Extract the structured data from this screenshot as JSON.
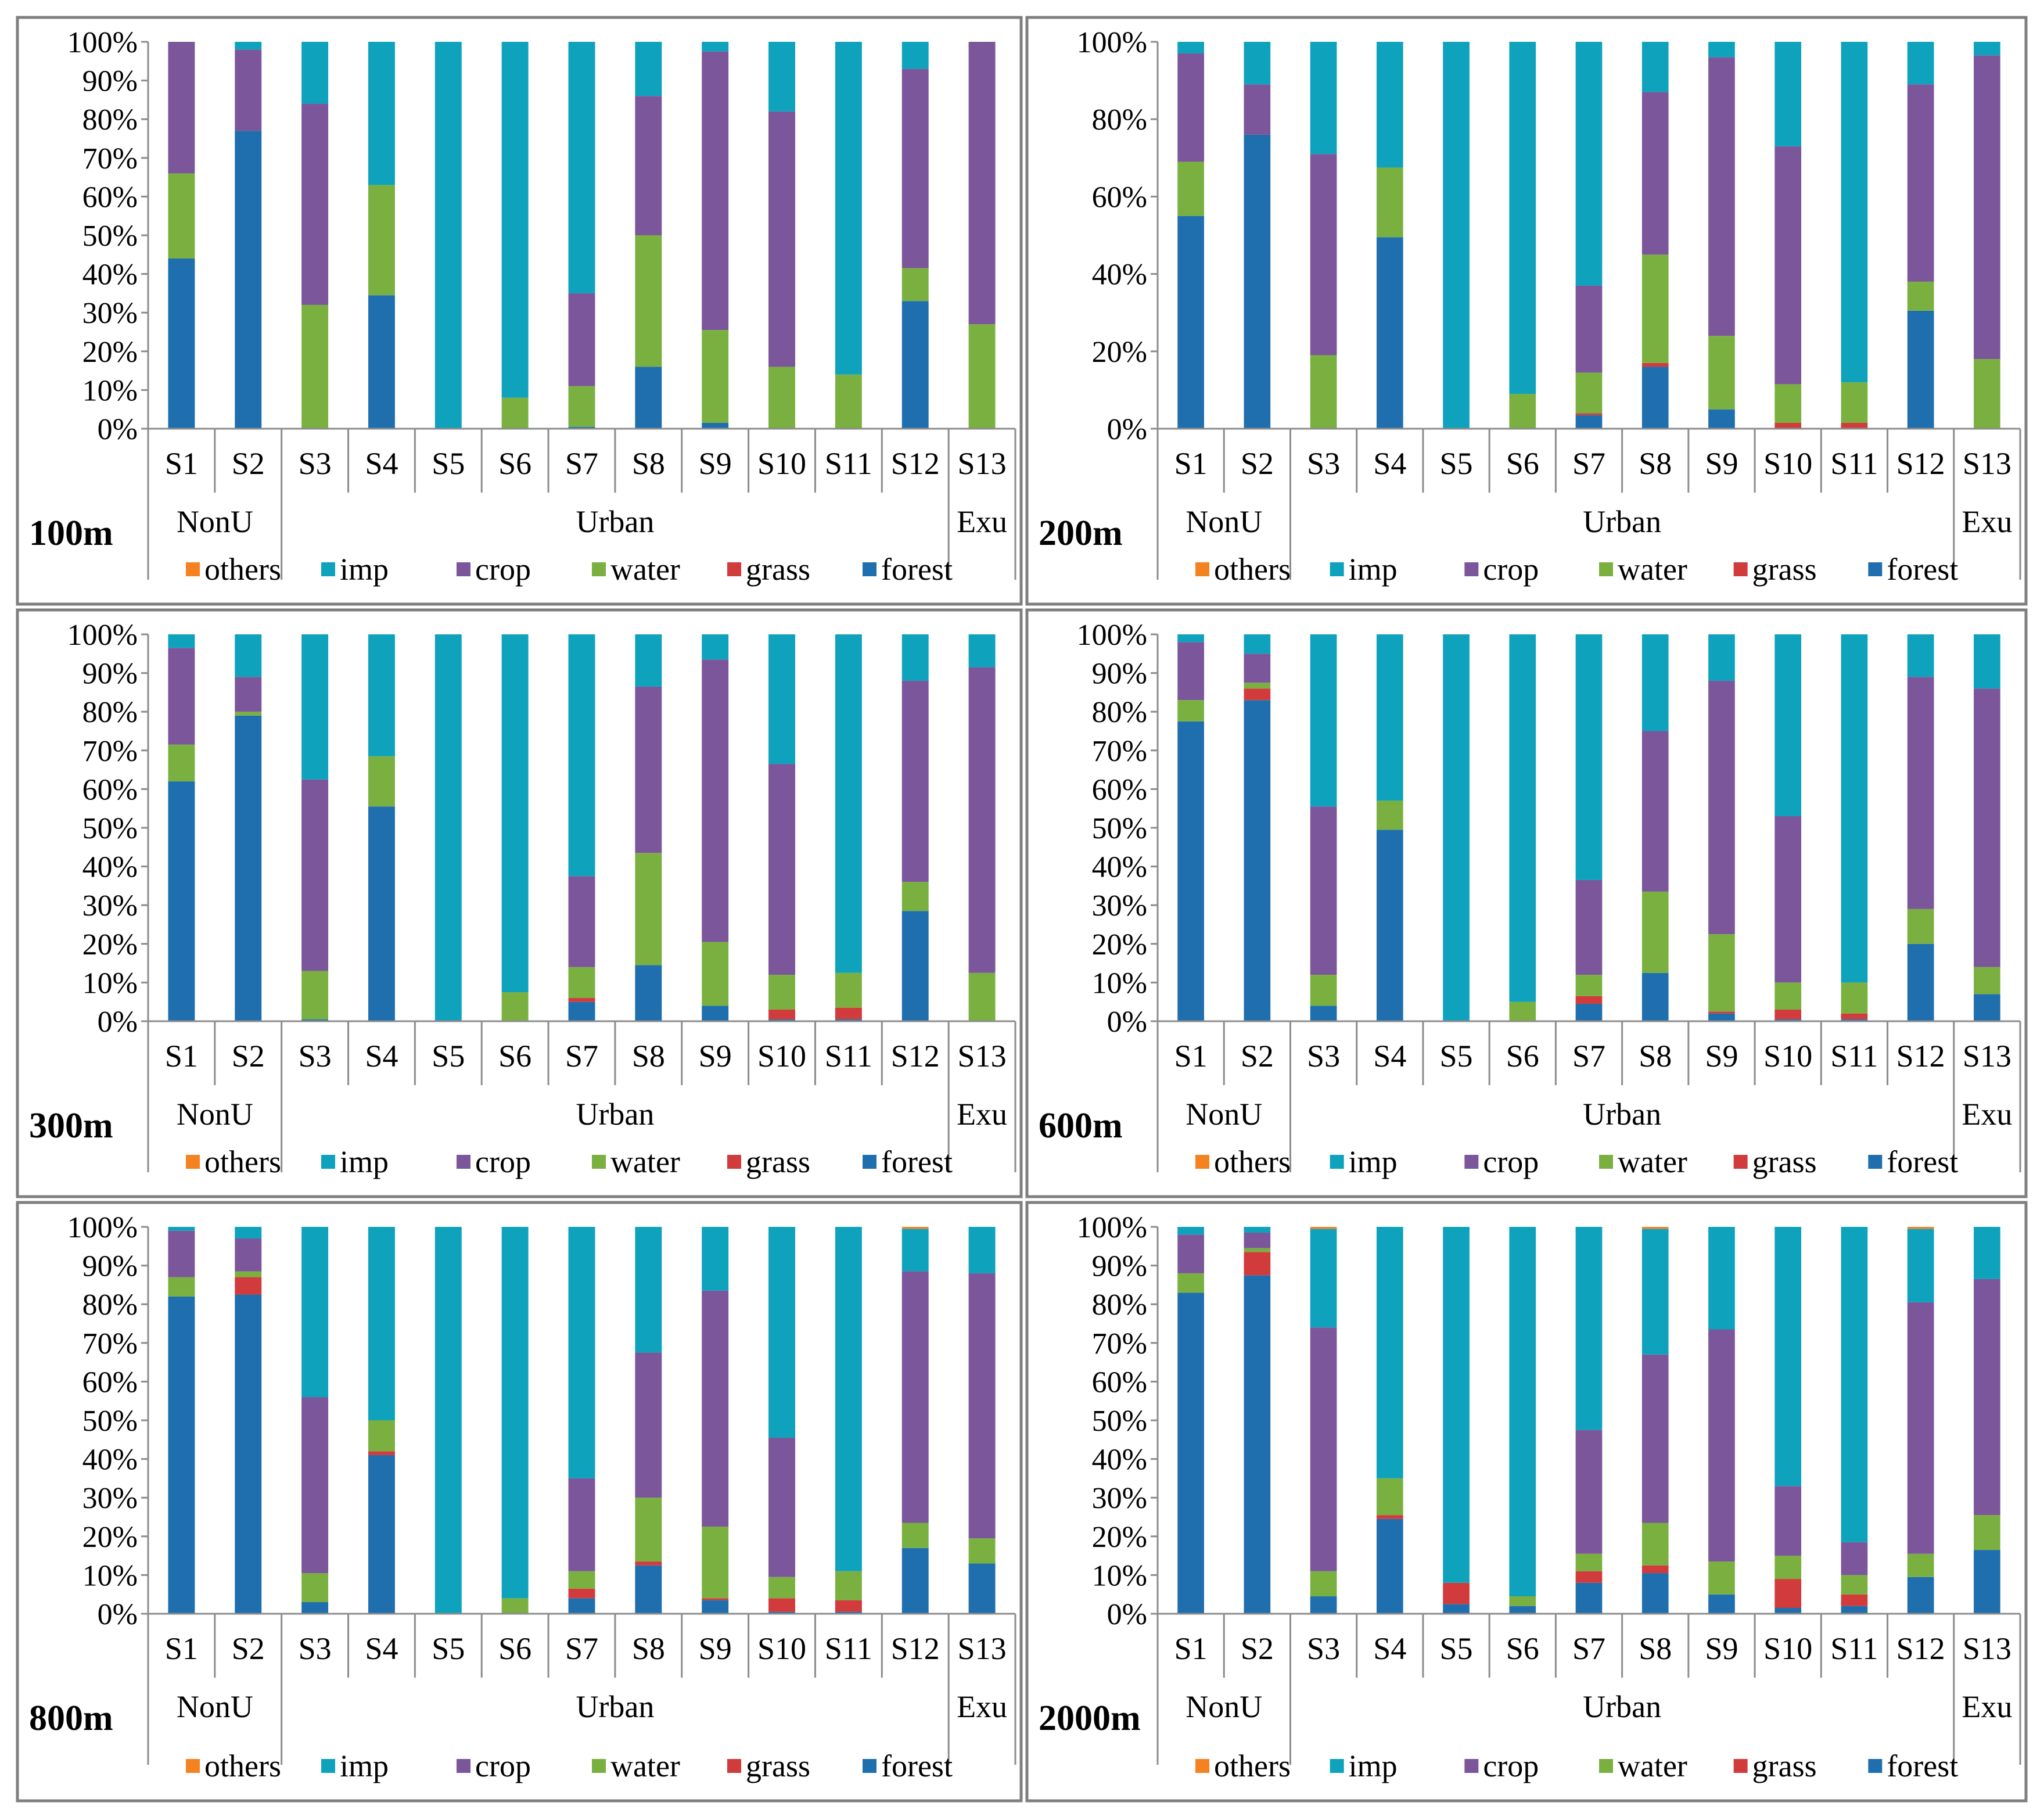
{
  "palette": {
    "others": "#f58220",
    "imp": "#0ea2bd",
    "crop": "#7b569a",
    "water": "#7ab040",
    "grass": "#d13b3b",
    "forest": "#1f6fae"
  },
  "chart_data": [
    {
      "type": "bar",
      "stacked": true,
      "panel_label": "100m",
      "categories": [
        "S1",
        "S2",
        "S3",
        "S4",
        "S5",
        "S6",
        "S7",
        "S8",
        "S9",
        "S10",
        "S11",
        "S12",
        "S13"
      ],
      "groups": [
        {
          "label": "NonU",
          "span": [
            0,
            1
          ]
        },
        {
          "label": "Urban",
          "span": [
            2,
            11
          ]
        },
        {
          "label": "Exu",
          "span": [
            12,
            12
          ]
        }
      ],
      "yticks": [
        "0%",
        "10%",
        "20%",
        "30%",
        "40%",
        "50%",
        "60%",
        "70%",
        "80%",
        "90%",
        "100%"
      ],
      "ylim": [
        0,
        100
      ],
      "legend": [
        "others",
        "imp",
        "crop",
        "water",
        "grass",
        "forest"
      ],
      "series": [
        {
          "name": "forest",
          "values": [
            44,
            77,
            0,
            34.5,
            0,
            0,
            0.5,
            16,
            1.5,
            0,
            0,
            33,
            0
          ]
        },
        {
          "name": "grass",
          "values": [
            0,
            0,
            0,
            0,
            0,
            0,
            0,
            0,
            0,
            0,
            0,
            0,
            0
          ]
        },
        {
          "name": "water",
          "values": [
            22,
            0,
            32,
            28.5,
            0,
            8,
            10.5,
            34,
            24,
            16,
            14,
            8.5,
            27
          ]
        },
        {
          "name": "crop",
          "values": [
            34,
            21,
            52,
            0,
            0,
            0,
            24,
            36,
            72,
            66,
            0,
            51.5,
            73
          ]
        },
        {
          "name": "imp",
          "values": [
            0,
            2,
            16,
            37,
            100,
            92,
            65,
            14,
            2.5,
            18,
            86,
            7,
            0
          ]
        },
        {
          "name": "others",
          "values": [
            0,
            0,
            0,
            0,
            0,
            0,
            0,
            0,
            0,
            0,
            0,
            0,
            0
          ]
        }
      ]
    },
    {
      "type": "bar",
      "stacked": true,
      "panel_label": "200m",
      "categories": [
        "S1",
        "S2",
        "S3",
        "S4",
        "S5",
        "S6",
        "S7",
        "S8",
        "S9",
        "S10",
        "S11",
        "S12",
        "S13"
      ],
      "groups": [
        {
          "label": "NonU",
          "span": [
            0,
            1
          ]
        },
        {
          "label": "Urban",
          "span": [
            2,
            11
          ]
        },
        {
          "label": "Exu",
          "span": [
            12,
            12
          ]
        }
      ],
      "yticks": [
        "0%",
        "20%",
        "40%",
        "60%",
        "80%",
        "100%"
      ],
      "ylim": [
        0,
        100
      ],
      "legend": [
        "others",
        "imp",
        "crop",
        "water",
        "grass",
        "forest"
      ],
      "series": [
        {
          "name": "forest",
          "values": [
            55,
            76,
            0,
            49.5,
            0,
            0,
            3.5,
            16,
            5,
            0,
            0,
            30.5,
            0
          ]
        },
        {
          "name": "grass",
          "values": [
            0,
            0,
            0,
            0,
            0,
            0,
            0.5,
            1,
            0,
            1.5,
            1.5,
            0,
            0
          ]
        },
        {
          "name": "water",
          "values": [
            14,
            0,
            19,
            18,
            0,
            9,
            10.5,
            28,
            19,
            10,
            10.5,
            7.5,
            18
          ]
        },
        {
          "name": "crop",
          "values": [
            28,
            13,
            52,
            0,
            0,
            0,
            22.5,
            42,
            72,
            61.5,
            0,
            51,
            78.5
          ]
        },
        {
          "name": "imp",
          "values": [
            3,
            11,
            29,
            32.5,
            100,
            91,
            63,
            13,
            4,
            27,
            88,
            11,
            3.5
          ]
        },
        {
          "name": "others",
          "values": [
            0,
            0,
            0,
            0,
            0,
            0,
            0,
            0,
            0,
            0,
            0,
            0,
            0
          ]
        }
      ]
    },
    {
      "type": "bar",
      "stacked": true,
      "panel_label": "300m",
      "categories": [
        "S1",
        "S2",
        "S3",
        "S4",
        "S5",
        "S6",
        "S7",
        "S8",
        "S9",
        "S10",
        "S11",
        "S12",
        "S13"
      ],
      "groups": [
        {
          "label": "NonU",
          "span": [
            0,
            1
          ]
        },
        {
          "label": "Urban",
          "span": [
            2,
            11
          ]
        },
        {
          "label": "Exu",
          "span": [
            12,
            12
          ]
        }
      ],
      "yticks": [
        "0%",
        "10%",
        "20%",
        "30%",
        "40%",
        "50%",
        "60%",
        "70%",
        "80%",
        "90%",
        "100%"
      ],
      "ylim": [
        0,
        100
      ],
      "legend": [
        "others",
        "imp",
        "crop",
        "water",
        "grass",
        "forest"
      ],
      "series": [
        {
          "name": "forest",
          "values": [
            62,
            79,
            0.5,
            55.5,
            0,
            0,
            5,
            14.5,
            4,
            0.5,
            0.5,
            28.5,
            0
          ]
        },
        {
          "name": "grass",
          "values": [
            0,
            0,
            0,
            0,
            0,
            0,
            1,
            0,
            0,
            2.5,
            3,
            0,
            0
          ]
        },
        {
          "name": "water",
          "values": [
            9.5,
            1,
            12.5,
            13,
            0,
            7.5,
            8,
            29,
            16.5,
            9,
            9,
            7.5,
            12.5
          ]
        },
        {
          "name": "crop",
          "values": [
            25,
            9,
            49.5,
            0,
            0,
            0,
            23.5,
            43,
            73,
            54.5,
            0,
            52,
            79
          ]
        },
        {
          "name": "imp",
          "values": [
            3.5,
            11,
            37.5,
            31.5,
            100,
            92.5,
            62.5,
            13.5,
            6.5,
            33.5,
            87.5,
            12,
            8.5
          ]
        },
        {
          "name": "others",
          "values": [
            0,
            0,
            0,
            0,
            0,
            0,
            0,
            0,
            0,
            0,
            0,
            0,
            0
          ]
        }
      ]
    },
    {
      "type": "bar",
      "stacked": true,
      "panel_label": "600m",
      "categories": [
        "S1",
        "S2",
        "S3",
        "S4",
        "S5",
        "S6",
        "S7",
        "S8",
        "S9",
        "S10",
        "S11",
        "S12",
        "S13"
      ],
      "groups": [
        {
          "label": "NonU",
          "span": [
            0,
            1
          ]
        },
        {
          "label": "Urban",
          "span": [
            2,
            11
          ]
        },
        {
          "label": "Exu",
          "span": [
            12,
            12
          ]
        }
      ],
      "yticks": [
        "0%",
        "10%",
        "20%",
        "30%",
        "40%",
        "50%",
        "60%",
        "70%",
        "80%",
        "90%",
        "100%"
      ],
      "ylim": [
        0,
        100
      ],
      "legend": [
        "others",
        "imp",
        "crop",
        "water",
        "grass",
        "forest"
      ],
      "series": [
        {
          "name": "forest",
          "values": [
            77.5,
            83,
            4,
            49.5,
            0,
            0,
            4.5,
            12.5,
            2,
            0.5,
            0.5,
            20,
            7
          ]
        },
        {
          "name": "grass",
          "values": [
            0,
            3,
            0,
            0,
            0,
            0,
            2,
            0,
            0.5,
            2.5,
            1.5,
            0,
            0
          ]
        },
        {
          "name": "water",
          "values": [
            5.5,
            1.5,
            8,
            7.5,
            0,
            5,
            5.5,
            21,
            20,
            7,
            8,
            9,
            7
          ]
        },
        {
          "name": "crop",
          "values": [
            15,
            7.5,
            43.5,
            0,
            0,
            0,
            24.5,
            41.5,
            65.5,
            43,
            0,
            60,
            72
          ]
        },
        {
          "name": "imp",
          "values": [
            2,
            5,
            44.5,
            43,
            100,
            95,
            63.5,
            25,
            12,
            47,
            90,
            11,
            14
          ]
        },
        {
          "name": "others",
          "values": [
            0,
            0,
            0,
            0,
            0,
            0,
            0,
            0,
            0,
            0,
            0,
            0,
            0
          ]
        }
      ]
    },
    {
      "type": "bar",
      "stacked": true,
      "panel_label": "800m",
      "categories": [
        "S1",
        "S2",
        "S3",
        "S4",
        "S5",
        "S6",
        "S7",
        "S8",
        "S9",
        "S10",
        "S11",
        "S12",
        "S13"
      ],
      "groups": [
        {
          "label": "NonU",
          "span": [
            0,
            1
          ]
        },
        {
          "label": "Urban",
          "span": [
            2,
            11
          ]
        },
        {
          "label": "Exu",
          "span": [
            12,
            12
          ]
        }
      ],
      "yticks": [
        "0%",
        "10%",
        "20%",
        "30%",
        "40%",
        "50%",
        "60%",
        "70%",
        "80%",
        "90%",
        "100%"
      ],
      "ylim": [
        0,
        100
      ],
      "legend": [
        "others",
        "imp",
        "crop",
        "water",
        "grass",
        "forest"
      ],
      "series": [
        {
          "name": "forest",
          "values": [
            82,
            82.5,
            3,
            41,
            0,
            0,
            4,
            12.5,
            3.5,
            0.5,
            0.5,
            17,
            13
          ]
        },
        {
          "name": "grass",
          "values": [
            0,
            4.5,
            0,
            1,
            0,
            0,
            2.5,
            1,
            0.5,
            3.5,
            3,
            0,
            0
          ]
        },
        {
          "name": "water",
          "values": [
            5,
            1.5,
            7.5,
            8,
            0,
            4,
            4.5,
            16.5,
            18.5,
            5.5,
            7.5,
            6.5,
            6.5
          ]
        },
        {
          "name": "crop",
          "values": [
            12,
            8.5,
            45.5,
            0,
            0,
            0,
            24,
            37.5,
            61,
            36,
            0,
            65,
            68.5
          ]
        },
        {
          "name": "imp",
          "values": [
            1,
            3,
            44,
            50,
            100,
            96,
            65,
            32.5,
            16.5,
            54.5,
            89,
            11,
            12
          ]
        },
        {
          "name": "others",
          "values": [
            0,
            0,
            0,
            0,
            0,
            0,
            0,
            0,
            0,
            0,
            0,
            0.5,
            0
          ]
        }
      ]
    },
    {
      "type": "bar",
      "stacked": true,
      "panel_label": "2000m",
      "categories": [
        "S1",
        "S2",
        "S3",
        "S4",
        "S5",
        "S6",
        "S7",
        "S8",
        "S9",
        "S10",
        "S11",
        "S12",
        "S13"
      ],
      "groups": [
        {
          "label": "NonU",
          "span": [
            0,
            1
          ]
        },
        {
          "label": "Urban",
          "span": [
            2,
            11
          ]
        },
        {
          "label": "Exu",
          "span": [
            12,
            12
          ]
        }
      ],
      "yticks": [
        "0%",
        "10%",
        "20%",
        "30%",
        "40%",
        "50%",
        "60%",
        "70%",
        "80%",
        "90%",
        "100%"
      ],
      "ylim": [
        0,
        100
      ],
      "legend": [
        "others",
        "imp",
        "crop",
        "water",
        "grass",
        "forest"
      ],
      "series": [
        {
          "name": "forest",
          "values": [
            83,
            87.5,
            4.5,
            24.5,
            2.5,
            2,
            8,
            10.5,
            5,
            1.5,
            2,
            9.5,
            16.5
          ]
        },
        {
          "name": "grass",
          "values": [
            0,
            6,
            0,
            1,
            5.5,
            0,
            3,
            2,
            0,
            7.5,
            3,
            0,
            0
          ]
        },
        {
          "name": "water",
          "values": [
            5,
            1,
            6.5,
            9.5,
            0,
            2.5,
            4.5,
            11,
            8.5,
            6,
            5,
            6,
            9
          ]
        },
        {
          "name": "crop",
          "values": [
            10,
            4,
            63,
            0,
            0,
            0,
            32,
            43.5,
            60,
            18,
            8.5,
            65,
            61
          ]
        },
        {
          "name": "imp",
          "values": [
            2,
            1.5,
            25.5,
            65,
            92,
            95.5,
            52.5,
            32.5,
            26.5,
            67,
            81.5,
            19,
            13.5
          ]
        },
        {
          "name": "others",
          "values": [
            0,
            0,
            0.5,
            0,
            0,
            0,
            0,
            0.5,
            0,
            0,
            0,
            0.5,
            0
          ]
        }
      ]
    }
  ]
}
